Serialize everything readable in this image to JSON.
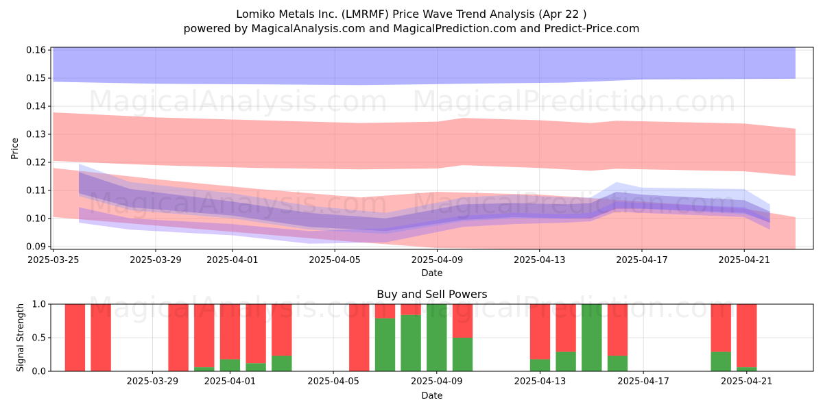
{
  "title_line1": "Lomiko Metals Inc. (LMRMF) Price Wave Trend Analysis (Apr 22 )",
  "title_line2": "powered by MagicalAnalysis.com and MagicalPrediction.com and Predict-Price.com",
  "watermarks": [
    "MagicalAnalysis.com",
    "MagicalPrediction.com"
  ],
  "colors": {
    "red": "#ff4c4c",
    "green": "#4aa84a",
    "blue": "#6666ff",
    "band_red": "#ff7f7f"
  },
  "chart_data": [
    {
      "type": "area",
      "title": "",
      "xlabel": "Date",
      "ylabel": "Price",
      "x_ticks": [
        "2025-03-25",
        "2025-03-29",
        "2025-04-01",
        "2025-04-05",
        "2025-04-09",
        "2025-04-13",
        "2025-04-17",
        "2025-04-21"
      ],
      "y_ticks": [
        "0.09",
        "0.10",
        "0.11",
        "0.12",
        "0.13",
        "0.14",
        "0.15",
        "0.16"
      ],
      "ylim": [
        0.089,
        0.161
      ],
      "xlim": [
        "2025-03-25",
        "2025-04-23"
      ],
      "grid": true,
      "series": [
        {
          "x": [
            "2025-03-25",
            "2025-03-29",
            "2025-04-02",
            "2025-04-06",
            "2025-04-10",
            "2025-04-14",
            "2025-04-17",
            "2025-04-23"
          ],
          "lower": [
            0.1487,
            0.148,
            0.1478,
            0.1475,
            0.148,
            0.1484,
            0.1495,
            0.1498
          ],
          "upper": [
            0.161,
            0.161,
            0.161,
            0.161,
            0.161,
            0.161,
            0.161,
            0.161
          ]
        },
        {
          "x": [
            "2025-03-25",
            "2025-03-29",
            "2025-04-02",
            "2025-04-06",
            "2025-04-09",
            "2025-04-10",
            "2025-04-13",
            "2025-04-15",
            "2025-04-16",
            "2025-04-21",
            "2025-04-23"
          ],
          "lower": [
            0.1205,
            0.119,
            0.118,
            0.1175,
            0.1178,
            0.119,
            0.118,
            0.117,
            0.1177,
            0.1168,
            0.1152
          ],
          "upper": [
            0.1378,
            0.136,
            0.135,
            0.134,
            0.1345,
            0.1358,
            0.135,
            0.134,
            0.1348,
            0.1338,
            0.132
          ]
        },
        {
          "x": [
            "2025-03-25",
            "2025-03-29",
            "2025-04-02",
            "2025-04-06",
            "2025-04-09",
            "2025-04-13",
            "2025-04-17",
            "2025-04-21",
            "2025-04-23"
          ],
          "lower": [
            0.1005,
            0.0975,
            0.0945,
            0.0915,
            0.0895,
            0.089,
            0.089,
            0.089,
            0.089
          ],
          "upper": [
            0.118,
            0.114,
            0.1105,
            0.1075,
            0.1095,
            0.1085,
            0.106,
            0.1035,
            0.1005
          ]
        },
        {
          "x": [
            "2025-03-26",
            "2025-03-28",
            "2025-04-01",
            "2025-04-04",
            "2025-04-07",
            "2025-04-10",
            "2025-04-12",
            "2025-04-14",
            "2025-04-15",
            "2025-04-16",
            "2025-04-17",
            "2025-04-21",
            "2025-04-22"
          ],
          "lower": [
            0.109,
            0.104,
            0.101,
            0.097,
            0.0955,
            0.0995,
            0.1005,
            0.1,
            0.1,
            0.1035,
            0.1035,
            0.102,
            0.0985
          ],
          "upper": [
            0.1165,
            0.1105,
            0.106,
            0.102,
            0.1,
            0.105,
            0.1055,
            0.105,
            0.1055,
            0.1095,
            0.1085,
            0.1065,
            0.1025
          ]
        },
        {
          "x": [
            "2025-03-26",
            "2025-03-28",
            "2025-04-01",
            "2025-04-04",
            "2025-04-07",
            "2025-04-10",
            "2025-04-12",
            "2025-04-14",
            "2025-04-15",
            "2025-04-16",
            "2025-04-17",
            "2025-04-21",
            "2025-04-22"
          ],
          "lower": [
            0.108,
            0.103,
            0.1,
            0.096,
            0.0945,
            0.099,
            0.1,
            0.1,
            0.1005,
            0.104,
            0.1035,
            0.1015,
            0.099
          ],
          "upper": [
            0.1195,
            0.113,
            0.109,
            0.1045,
            0.102,
            0.1075,
            0.1085,
            0.1075,
            0.1075,
            0.113,
            0.111,
            0.1105,
            0.105
          ]
        },
        {
          "x": [
            "2025-03-26",
            "2025-03-28",
            "2025-04-01",
            "2025-04-04",
            "2025-04-07",
            "2025-04-10",
            "2025-04-12",
            "2025-04-14",
            "2025-04-15",
            "2025-04-16",
            "2025-04-17",
            "2025-04-21",
            "2025-04-22"
          ],
          "lower": [
            0.0985,
            0.096,
            0.094,
            0.091,
            0.0915,
            0.097,
            0.098,
            0.0985,
            0.099,
            0.1025,
            0.102,
            0.1005,
            0.096
          ],
          "upper": [
            0.104,
            0.1,
            0.098,
            0.0955,
            0.0965,
            0.101,
            0.102,
            0.1015,
            0.102,
            0.106,
            0.1055,
            0.104,
            0.0995
          ]
        }
      ]
    },
    {
      "type": "bar",
      "title": "Buy and Sell Powers",
      "xlabel": "Date",
      "ylabel": "Signal Strength",
      "ylim": [
        0,
        1.0
      ],
      "y_ticks": [
        "0.0",
        "0.5",
        "1.0"
      ],
      "x_ticks": [
        "2025-03-29",
        "2025-04-01",
        "2025-04-05",
        "2025-04-09",
        "2025-04-13",
        "2025-04-17",
        "2025-04-21"
      ],
      "grid": true,
      "categories": [
        "2025-03-26",
        "2025-03-27",
        "2025-03-30",
        "2025-03-31",
        "2025-04-01",
        "2025-04-02",
        "2025-04-03",
        "2025-04-06",
        "2025-04-07",
        "2025-04-08",
        "2025-04-09",
        "2025-04-10",
        "2025-04-13",
        "2025-04-14",
        "2025-04-15",
        "2025-04-16",
        "2025-04-20",
        "2025-04-21"
      ],
      "series": [
        {
          "values": [
            0,
            0,
            0,
            0.06,
            0.18,
            0.12,
            0.23,
            0,
            0.79,
            0.84,
            1.0,
            0.5,
            0.18,
            0.29,
            1.0,
            0.23,
            0.29,
            0.06
          ]
        },
        {
          "values": [
            1.0,
            1.0,
            1.0,
            0.94,
            0.82,
            0.88,
            0.77,
            1.0,
            0.21,
            0.16,
            0,
            0.5,
            0.82,
            0.71,
            0,
            0.77,
            0.71,
            0.94
          ]
        }
      ]
    }
  ]
}
